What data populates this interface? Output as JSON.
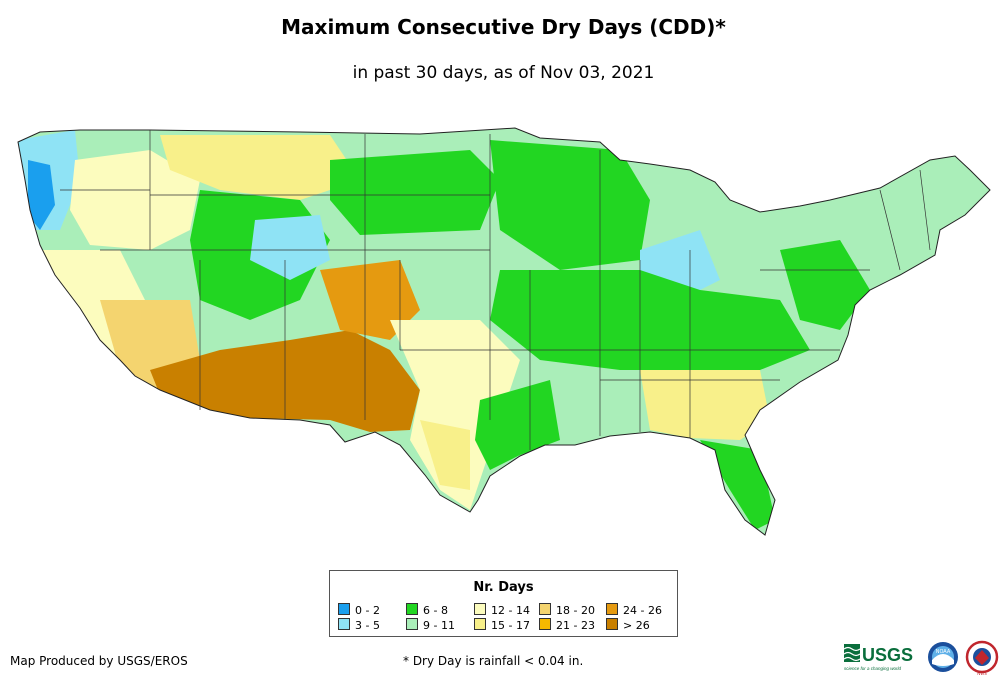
{
  "title": "Maximum Consecutive Dry Days (CDD)*",
  "subtitle": "in past 30 days, as of Nov 03, 2021",
  "legend": {
    "title": "Nr. Days",
    "items": [
      {
        "label": "0 - 2",
        "color": "#1a9fee"
      },
      {
        "label": "3 - 5",
        "color": "#8fe3f5"
      },
      {
        "label": "6 - 8",
        "color": "#22d622"
      },
      {
        "label": "9 - 11",
        "color": "#aaeeb9"
      },
      {
        "label": "12 - 14",
        "color": "#fcfcbe"
      },
      {
        "label": "15 - 17",
        "color": "#f8f08a"
      },
      {
        "label": "18 - 20",
        "color": "#f4d46f"
      },
      {
        "label": "21 - 23",
        "color": "#f5b800"
      },
      {
        "label": "24 - 26",
        "color": "#e59a10"
      },
      {
        "label": "> 26",
        "color": "#c98000"
      }
    ]
  },
  "credit": "Map Produced by USGS/EROS",
  "footnote": "* Dry Day is rainfall < 0.04 in.",
  "logos": {
    "usgs": "USGS",
    "usgs_tagline": "science for a changing world",
    "noaa": "NOAA",
    "nws": "NWS"
  }
}
